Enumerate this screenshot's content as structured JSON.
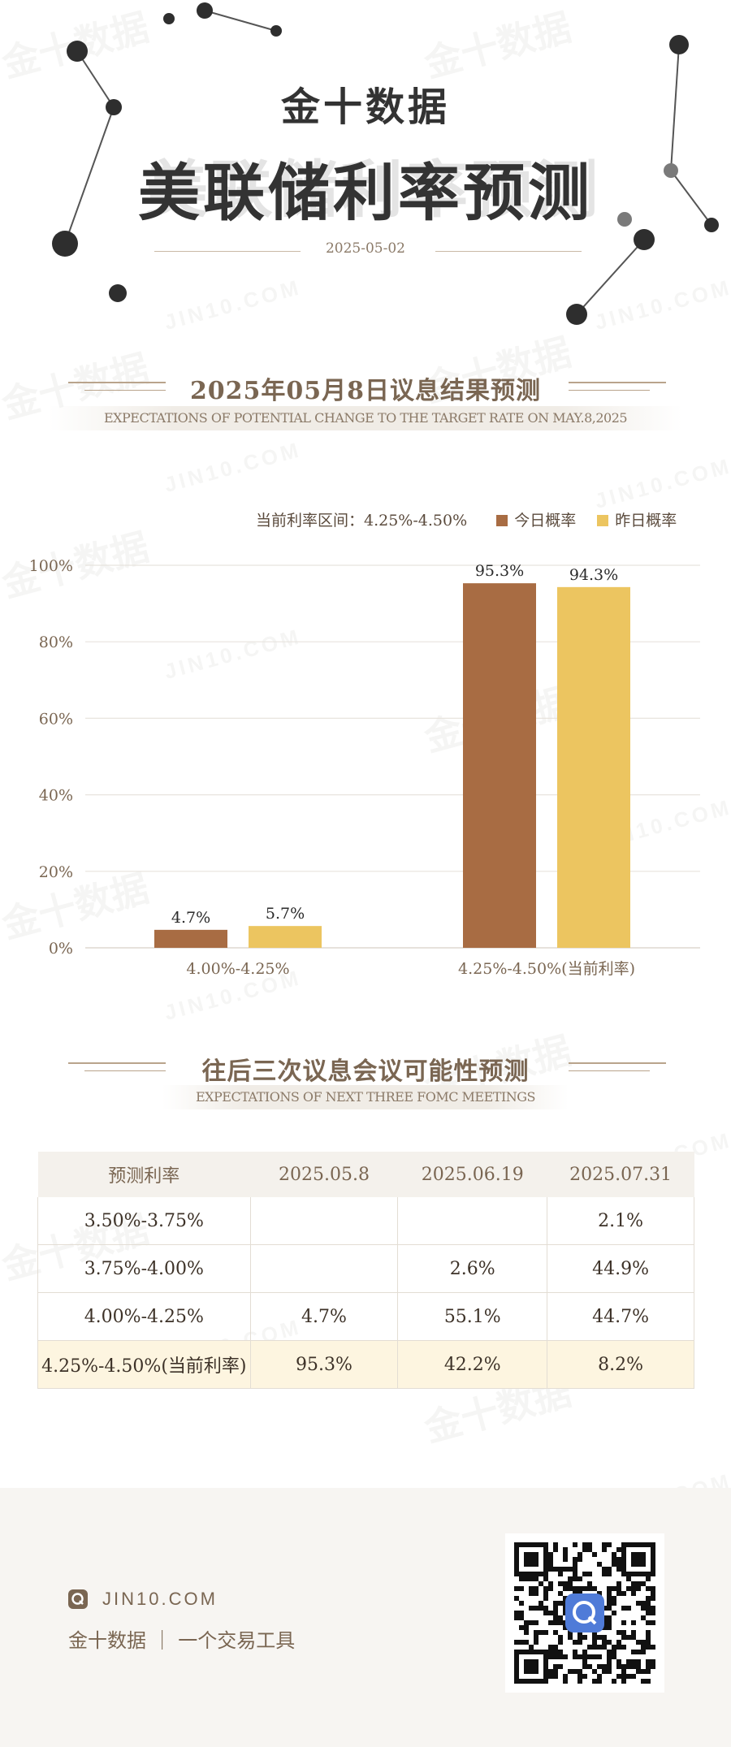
{
  "header": {
    "brand": "金十数据",
    "title": "美联储利率预测",
    "date": "2025-05-02"
  },
  "section1": {
    "title": "2025年05月8日议息结果预测",
    "subtitle": "EXPECTATIONS OF POTENTIAL CHANGE TO THE TARGET RATE ON MAY.8,2025"
  },
  "legend": {
    "current_range": "当前利率区间：4.25%-4.50%",
    "today": "今日概率",
    "yesterday": "昨日概率"
  },
  "chart_data": {
    "type": "bar",
    "categories": [
      "4.00%-4.25%",
      "4.25%-4.50%(当前利率)"
    ],
    "series": [
      {
        "name": "今日概率",
        "values": [
          4.7,
          95.3
        ],
        "color": "#a86c43"
      },
      {
        "name": "昨日概率",
        "values": [
          5.7,
          94.3
        ],
        "color": "#ecc560"
      }
    ],
    "value_labels": [
      [
        "4.7%",
        "95.3%"
      ],
      [
        "5.7%",
        "94.3%"
      ]
    ],
    "yticks": [
      "0%",
      "20%",
      "40%",
      "60%",
      "80%",
      "100%"
    ],
    "ylim": [
      0,
      100
    ],
    "grid": true,
    "legend_position": "top-right"
  },
  "section2": {
    "title": "往后三次议息会议可能性预测",
    "subtitle": "EXPECTATIONS OF NEXT THREE FOMC MEETINGS"
  },
  "table": {
    "headers": [
      "预测利率",
      "2025.05.8",
      "2025.06.19",
      "2025.07.31"
    ],
    "rows": [
      [
        "3.50%-3.75%",
        "",
        "",
        "2.1%"
      ],
      [
        "3.75%-4.00%",
        "",
        "2.6%",
        "44.9%"
      ],
      [
        "4.00%-4.25%",
        "4.7%",
        "55.1%",
        "44.7%"
      ],
      [
        "4.25%-4.50%(当前利率)",
        "95.3%",
        "42.2%",
        "8.2%"
      ]
    ]
  },
  "footer": {
    "site": "JIN10.COM",
    "tagline": "金十数据 ｜ 一个交易工具"
  },
  "colors": {
    "today": "#a86c43",
    "yesterday": "#ecc560",
    "text_brown": "#7a6652"
  }
}
